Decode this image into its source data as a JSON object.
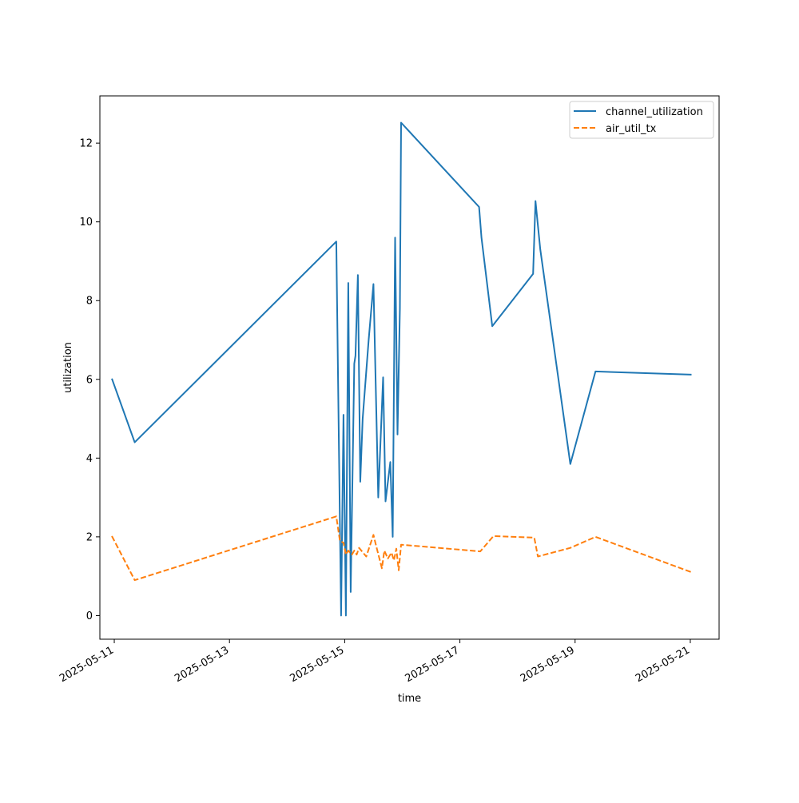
{
  "chart_data": {
    "type": "line",
    "xlabel": "time",
    "ylabel": "utilization",
    "ylim": [
      -0.6,
      13.2
    ],
    "xlim": [
      "2025-05-10T18:00",
      "2025-05-21T12:00"
    ],
    "x_ticks": [
      "2025-05-11",
      "2025-05-13",
      "2025-05-15",
      "2025-05-17",
      "2025-05-19",
      "2025-05-21"
    ],
    "y_ticks": [
      "0",
      "2",
      "4",
      "6",
      "8",
      "10",
      "12"
    ],
    "legend_position": "top-right",
    "grid": false,
    "series": [
      {
        "name": "channel_utilization",
        "color": "#1f77b4",
        "dash": "solid",
        "points": [
          [
            "2025-05-10T23:00",
            6.02
          ],
          [
            "2025-05-11T08:30",
            4.4
          ],
          [
            "2025-05-14T20:30",
            9.5
          ],
          [
            "2025-05-14T22:30",
            0.0
          ],
          [
            "2025-05-14T23:30",
            5.1
          ],
          [
            "2025-05-15T00:30",
            0.0
          ],
          [
            "2025-05-15T01:30",
            8.45
          ],
          [
            "2025-05-15T02:30",
            0.6
          ],
          [
            "2025-05-15T04:00",
            6.4
          ],
          [
            "2025-05-15T04:30",
            6.6
          ],
          [
            "2025-05-15T05:30",
            8.65
          ],
          [
            "2025-05-15T06:30",
            3.4
          ],
          [
            "2025-05-15T07:30",
            5.0
          ],
          [
            "2025-05-15T10:00",
            7.0
          ],
          [
            "2025-05-15T12:00",
            8.42
          ],
          [
            "2025-05-15T14:00",
            3.0
          ],
          [
            "2025-05-15T16:00",
            6.05
          ],
          [
            "2025-05-15T17:00",
            2.9
          ],
          [
            "2025-05-15T19:00",
            3.9
          ],
          [
            "2025-05-15T20:00",
            2.0
          ],
          [
            "2025-05-15T21:00",
            9.6
          ],
          [
            "2025-05-15T22:00",
            4.6
          ],
          [
            "2025-05-15T23:00",
            7.8
          ],
          [
            "2025-05-15T23:30",
            12.52
          ],
          [
            "2025-05-17T08:00",
            10.38
          ],
          [
            "2025-05-17T09:00",
            9.6
          ],
          [
            "2025-05-17T13:30",
            7.35
          ],
          [
            "2025-05-18T06:30",
            8.68
          ],
          [
            "2025-05-18T07:30",
            10.53
          ],
          [
            "2025-05-18T09:30",
            9.3
          ],
          [
            "2025-05-18T22:00",
            3.85
          ],
          [
            "2025-05-19T08:30",
            6.2
          ],
          [
            "2025-05-21T00:30",
            6.12
          ]
        ]
      },
      {
        "name": "air_util_tx",
        "color": "#ff7f0e",
        "dash": "dashed",
        "points": [
          [
            "2025-05-10T23:00",
            2.02
          ],
          [
            "2025-05-11T08:30",
            0.9
          ],
          [
            "2025-05-14T20:30",
            2.52
          ],
          [
            "2025-05-14T22:00",
            1.9
          ],
          [
            "2025-05-14T23:30",
            1.85
          ],
          [
            "2025-05-15T00:30",
            1.55
          ],
          [
            "2025-05-15T01:30",
            1.65
          ],
          [
            "2025-05-15T03:00",
            1.55
          ],
          [
            "2025-05-15T04:00",
            1.65
          ],
          [
            "2025-05-15T05:00",
            1.55
          ],
          [
            "2025-05-15T06:00",
            1.72
          ],
          [
            "2025-05-15T09:00",
            1.5
          ],
          [
            "2025-05-15T12:00",
            2.05
          ],
          [
            "2025-05-15T13:00",
            1.8
          ],
          [
            "2025-05-15T15:30",
            1.2
          ],
          [
            "2025-05-15T16:30",
            1.65
          ],
          [
            "2025-05-15T18:00",
            1.45
          ],
          [
            "2025-05-15T19:30",
            1.6
          ],
          [
            "2025-05-15T20:30",
            1.4
          ],
          [
            "2025-05-15T21:30",
            1.7
          ],
          [
            "2025-05-15T22:30",
            1.15
          ],
          [
            "2025-05-15T23:30",
            1.8
          ],
          [
            "2025-05-17T08:30",
            1.63
          ],
          [
            "2025-05-17T14:00",
            2.02
          ],
          [
            "2025-05-18T07:00",
            1.98
          ],
          [
            "2025-05-18T08:30",
            1.5
          ],
          [
            "2025-05-18T22:00",
            1.72
          ],
          [
            "2025-05-19T08:30",
            2.0
          ],
          [
            "2025-05-21T00:30",
            1.1
          ]
        ]
      }
    ]
  }
}
